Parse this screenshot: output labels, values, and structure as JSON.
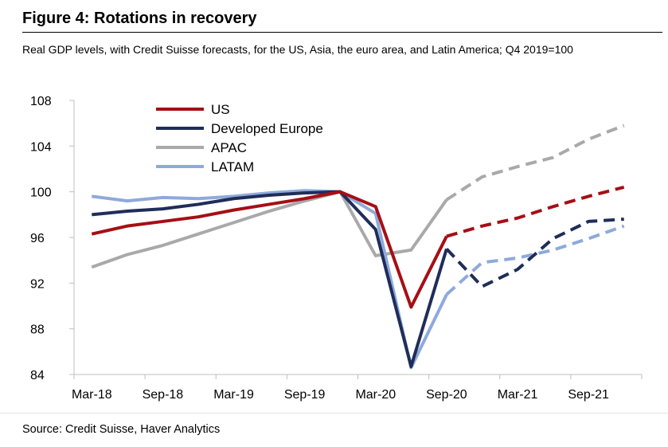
{
  "figure": {
    "title": "Figure 4: Rotations in recovery",
    "subtitle": "Real GDP levels, with Credit Suisse forecasts, for the US, Asia, the euro area, and Latin America; Q4 2019=100",
    "source": "Source: Credit Suisse, Haver Analytics"
  },
  "chart_data": {
    "type": "line",
    "title": "Figure 4: Rotations in recovery",
    "subtitle": "Real GDP levels, with Credit Suisse forecasts, for the US, Asia, the euro area, and Latin America; Q4 2019=100",
    "xlabel": "",
    "ylabel": "",
    "x": [
      "Mar-18",
      "Jun-18",
      "Sep-18",
      "Dec-18",
      "Mar-19",
      "Jun-19",
      "Sep-19",
      "Dec-19",
      "Mar-20",
      "Jun-20",
      "Sep-20",
      "Dec-20",
      "Mar-21",
      "Jun-21",
      "Sep-21",
      "Dec-21"
    ],
    "x_tick_labels": [
      "Mar-18",
      "Sep-18",
      "Mar-19",
      "Sep-19",
      "Mar-20",
      "Sep-20",
      "Mar-21",
      "Sep-21"
    ],
    "ylim": [
      84,
      108
    ],
    "y_ticks": [
      84,
      88,
      92,
      96,
      100,
      104,
      108
    ],
    "forecast_from": "Sep-20",
    "grid": false,
    "legend_position": "top-left",
    "series": [
      {
        "name": "US",
        "color": "#a50f15",
        "values": [
          96.3,
          97.0,
          97.4,
          97.8,
          98.4,
          98.9,
          99.4,
          100.0,
          98.7,
          89.9,
          96.1,
          97.0,
          97.7,
          98.7,
          99.6,
          100.4
        ]
      },
      {
        "name": "Developed Europe",
        "color": "#1f2d59",
        "values": [
          98.0,
          98.3,
          98.5,
          98.9,
          99.4,
          99.7,
          99.9,
          100.0,
          96.7,
          84.7,
          95.0,
          91.7,
          93.2,
          95.9,
          97.4,
          97.6
        ]
      },
      {
        "name": "APAC",
        "color": "#a9a9a9",
        "values": [
          93.4,
          94.5,
          95.3,
          96.3,
          97.3,
          98.3,
          99.2,
          100.0,
          94.4,
          94.9,
          99.3,
          101.3,
          102.2,
          103.0,
          104.6,
          105.8
        ]
      },
      {
        "name": "LATAM",
        "color": "#8eaadb",
        "values": [
          99.6,
          99.2,
          99.5,
          99.4,
          99.6,
          99.9,
          100.1,
          100.0,
          98.1,
          84.6,
          91.0,
          93.8,
          94.2,
          94.9,
          95.9,
          97.0
        ]
      }
    ]
  }
}
